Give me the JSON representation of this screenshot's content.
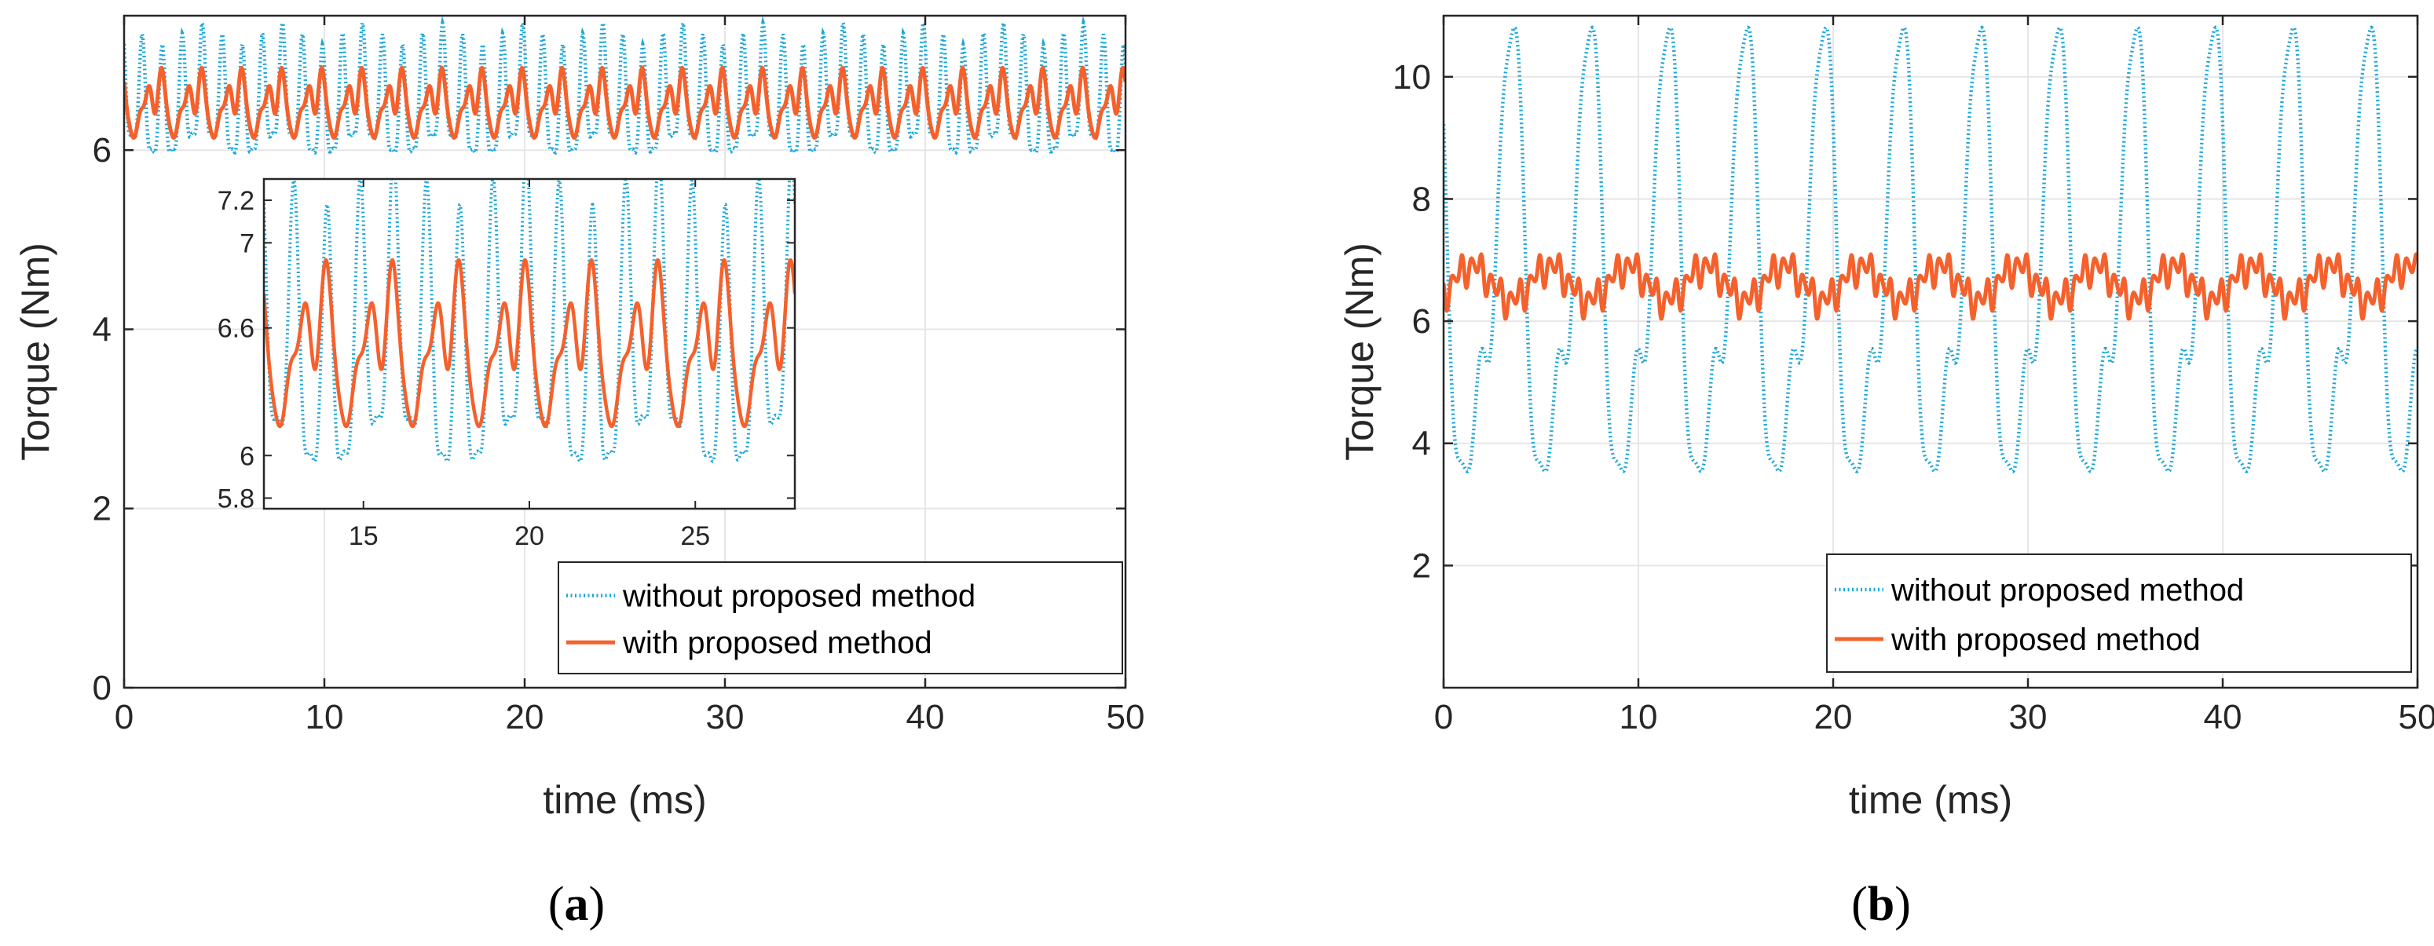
{
  "chart_data": [
    {
      "id": "a",
      "type": "line",
      "panel_label_open": "(",
      "panel_label": "a",
      "panel_label_close": ")",
      "title": "",
      "xlabel": "time (ms)",
      "ylabel": "Torque (Nm)",
      "xlim": [
        0,
        50
      ],
      "ylim": [
        0,
        7.5
      ],
      "xticks": [
        0,
        10,
        20,
        30,
        40,
        50
      ],
      "yticks": [
        0,
        2,
        4,
        6
      ],
      "grid": true,
      "legend_position": "bottom-right",
      "series": [
        {
          "name": "without proposed method",
          "color": "#1ba8d8",
          "style": "dotted",
          "mean": 6.5,
          "components": [
            [
              0.6,
              1.0,
              0.6
            ],
            [
              0.2,
              2.0,
              1.2
            ],
            [
              0.12,
              0.25,
              0.2
            ]
          ]
        },
        {
          "name": "with proposed method",
          "color": "#f5612c",
          "style": "solid",
          "mean": 6.5,
          "components": [
            [
              0.22,
              0.5,
              1.3
            ],
            [
              0.18,
              1.0,
              0.2
            ],
            [
              0.1,
              1.5,
              0.8
            ],
            [
              0.06,
              2.0,
              2.4
            ]
          ]
        }
      ],
      "inset": {
        "xlim": [
          12,
          28
        ],
        "ylim": [
          5.75,
          7.3
        ],
        "xticks": [
          15,
          20,
          25
        ],
        "yticks": [
          5.8,
          6,
          6.6,
          7,
          7.2
        ],
        "grid": false
      }
    },
    {
      "id": "b",
      "type": "line",
      "panel_label_open": "(",
      "panel_label": "b",
      "panel_label_close": ")",
      "title": "",
      "xlabel": "time (ms)",
      "ylabel": "Torque (Nm)",
      "xlim": [
        0,
        50
      ],
      "ylim": [
        0,
        11
      ],
      "xticks": [
        0,
        10,
        20,
        30,
        40,
        50
      ],
      "yticks": [
        2,
        4,
        6,
        8,
        10
      ],
      "grid": true,
      "legend_position": "bottom-right",
      "series": [
        {
          "name": "without proposed method",
          "color": "#1ba8d8",
          "style": "dotted",
          "mean": 6.6,
          "components": [
            [
              3.4,
              0.25,
              1.0
            ],
            [
              1.2,
              0.5,
              1.2
            ],
            [
              0.4,
              1.0,
              0.5
            ]
          ]
        },
        {
          "name": "with proposed method",
          "color": "#f5612c",
          "style": "solid",
          "mean": 6.62,
          "components": [
            [
              0.28,
              0.25,
              4.0
            ],
            [
              0.2,
              2.0,
              0.8
            ],
            [
              0.1,
              1.0,
              1.6
            ],
            [
              0.05,
              3.0,
              0.4
            ]
          ]
        }
      ]
    }
  ]
}
